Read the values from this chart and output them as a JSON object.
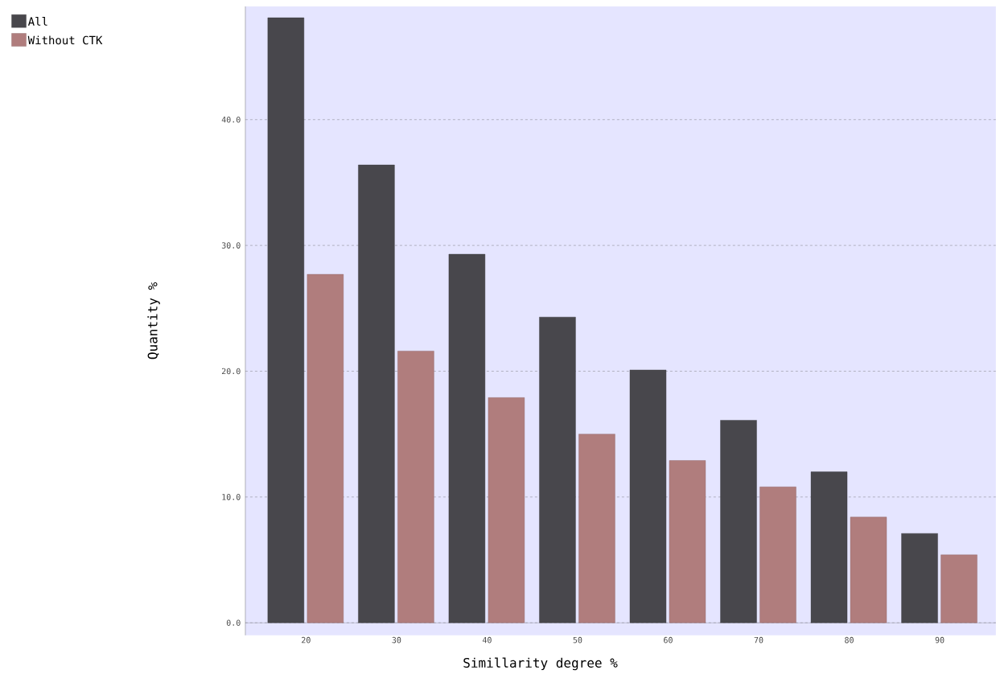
{
  "chart_data": {
    "type": "bar",
    "xlabel": "Simillarity degree %",
    "ylabel": "Quantity %",
    "categories": [
      "20",
      "30",
      "40",
      "50",
      "60",
      "70",
      "80",
      "90"
    ],
    "series": [
      {
        "name": "All",
        "color": "#48474c",
        "values": [
          48.1,
          36.4,
          29.3,
          24.3,
          20.1,
          16.1,
          12.0,
          7.1
        ]
      },
      {
        "name": "Without CTK",
        "color": "#b07d7d",
        "values": [
          27.7,
          21.6,
          17.9,
          15.0,
          12.9,
          10.8,
          8.4,
          5.4
        ]
      }
    ],
    "ylim": [
      -1,
      49
    ],
    "yticks": [
      {
        "value": 0,
        "label": "0.0"
      },
      {
        "value": 10,
        "label": "10.0"
      },
      {
        "value": 20,
        "label": "20.0"
      },
      {
        "value": 30,
        "label": "30.0"
      },
      {
        "value": 40,
        "label": "40.0"
      }
    ],
    "grid": "y",
    "legend": "top left"
  }
}
